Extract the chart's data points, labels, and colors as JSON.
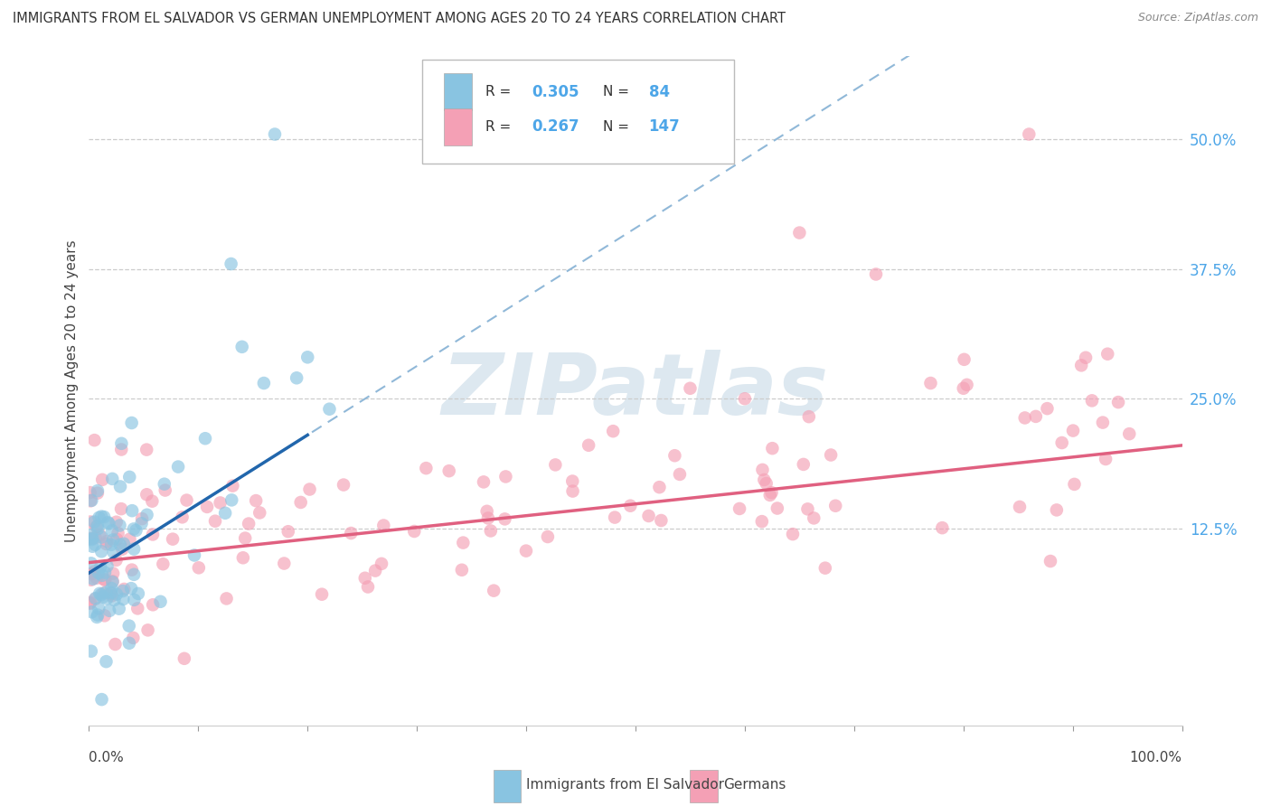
{
  "title": "IMMIGRANTS FROM EL SALVADOR VS GERMAN UNEMPLOYMENT AMONG AGES 20 TO 24 YEARS CORRELATION CHART",
  "source": "Source: ZipAtlas.com",
  "ylabel": "Unemployment Among Ages 20 to 24 years",
  "ylabel_right_ticks": [
    "50.0%",
    "37.5%",
    "25.0%",
    "12.5%"
  ],
  "ylabel_right_vals": [
    0.5,
    0.375,
    0.25,
    0.125
  ],
  "legend_label1": "Immigrants from El Salvador",
  "legend_label2": "Germans",
  "R1": "0.305",
  "N1": "84",
  "R2": "0.267",
  "N2": "147",
  "color_blue": "#89C4E1",
  "color_pink": "#F4A0B5",
  "color_trend_blue": "#2166ac",
  "color_trend_pink": "#e06080",
  "color_dashed": "#90b8d8",
  "color_right_axis": "#4da6e8",
  "watermark_color": "#dde8f0",
  "xlim": [
    0.0,
    1.0
  ],
  "ylim": [
    -0.065,
    0.58
  ],
  "blue_trend_x0": 0.0,
  "blue_trend_y0": 0.082,
  "blue_trend_x1": 0.2,
  "blue_trend_y1": 0.215,
  "pink_trend_x0": 0.0,
  "pink_trend_y0": 0.092,
  "pink_trend_x1": 1.0,
  "pink_trend_y1": 0.205
}
